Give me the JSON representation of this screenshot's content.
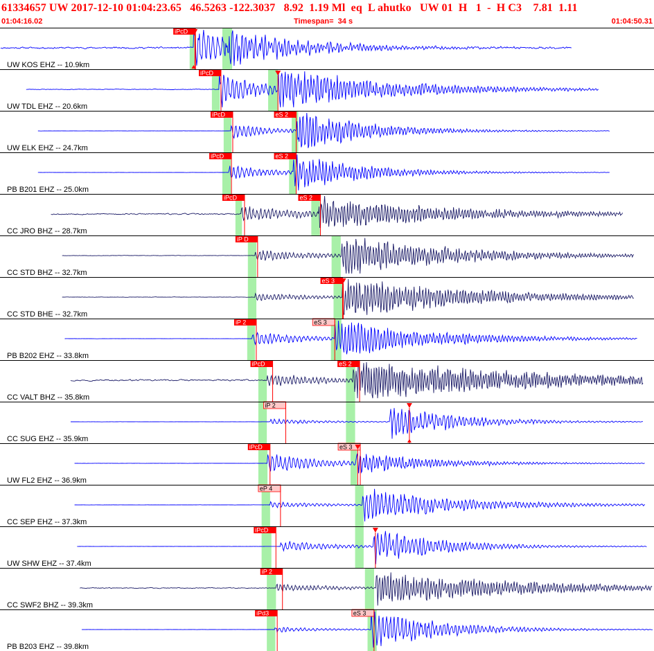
{
  "header": {
    "title": "61334657 UW 2017-12-10 01:04:23.65   46.5263 -122.3037   8.92  1.19 Ml  eq  L ahutko   UW 01  H   1  -  H C3    7.81  1.11",
    "start_time": "01:04:16.02",
    "timespan": "Timespan=  34 s",
    "end_time": "01:04:50.31"
  },
  "colors": {
    "trace_blue": "#0000ff",
    "trace_navy": "#1a1a66",
    "pick_red": "#ff0000",
    "pick_pink": "#ffc8c8",
    "window_green": "#a8f0a8",
    "divider": "#000000"
  },
  "channels": [
    {
      "label": "UW KOS EHZ -- 10.9km",
      "color": "blue",
      "noise": 0.08,
      "seed": 11,
      "start": 0.1,
      "end": 87.4,
      "p_arrival": 29.6,
      "s_arrival": 34.5,
      "p_amp": 1.0,
      "s_amp": 0.8,
      "p_decay": 8,
      "s_decay": 12,
      "p_period": 0.4,
      "s_period": 0.7,
      "green": [
        [
          29.0,
          29.8
        ],
        [
          34.0,
          35.5
        ]
      ],
      "picks": [
        {
          "label": "iPcD",
          "x": 26.5,
          "style": "red"
        }
      ],
      "markers": [
        {
          "x": 29.8,
          "dir": "down"
        }
      ],
      "pdots": [
        {
          "x": 29.6,
          "y": 0.92
        }
      ]
    },
    {
      "label": "UW TDL EHZ -- 20.6km",
      "color": "blue",
      "noise": 0.03,
      "seed": 23,
      "start": 4.0,
      "end": 91.5,
      "p_arrival": 33.5,
      "s_arrival": 42.5,
      "p_amp": 0.9,
      "s_amp": 1.0,
      "p_decay": 6,
      "s_decay": 16,
      "p_period": 0.45,
      "s_period": 0.7,
      "green": [
        [
          32.4,
          33.6
        ],
        [
          41.0,
          42.5
        ]
      ],
      "picks": [
        {
          "label": "iPcD",
          "x": 30.4,
          "style": "red"
        }
      ],
      "markers": [
        {
          "x": 42.5,
          "dir": "down"
        }
      ],
      "pdots": []
    },
    {
      "label": "UW ELK EHZ -- 24.7km",
      "color": "blue",
      "noise": 0.01,
      "seed": 37,
      "start": 5.8,
      "end": 93.2,
      "p_arrival": 35.3,
      "s_arrival": 45.3,
      "p_amp": 0.4,
      "s_amp": 1.0,
      "p_decay": 6,
      "s_decay": 10,
      "p_period": 0.45,
      "s_period": 0.7,
      "green": [
        [
          34.2,
          35.4
        ],
        [
          44.6,
          45.6
        ]
      ],
      "picks": [
        {
          "label": "iPcD",
          "x": 32.2,
          "style": "red"
        },
        {
          "label": "eS 2",
          "x": 41.9,
          "style": "red"
        }
      ],
      "markers": [],
      "pdots": []
    },
    {
      "label": "PB B201 EHZ -- 25.0km",
      "color": "blue",
      "noise": 0.01,
      "seed": 41,
      "start": 5.8,
      "end": 93.2,
      "p_arrival": 35.0,
      "s_arrival": 44.8,
      "p_amp": 0.4,
      "s_amp": 0.9,
      "p_decay": 6,
      "s_decay": 10,
      "p_period": 0.45,
      "s_period": 0.7,
      "green": [
        [
          34.0,
          35.3
        ],
        [
          44.2,
          45.3
        ]
      ],
      "picks": [
        {
          "label": "iPcD",
          "x": 32.0,
          "style": "red"
        },
        {
          "label": "eS 2",
          "x": 41.9,
          "style": "red"
        }
      ],
      "markers": [],
      "pdots": []
    },
    {
      "label": "CC JRO BHZ -- 28.7km",
      "color": "navy",
      "noise": 0.06,
      "seed": 53,
      "start": 7.8,
      "end": 95.3,
      "p_arrival": 36.9,
      "s_arrival": 48.7,
      "p_amp": 0.4,
      "s_amp": 0.8,
      "p_decay": 10,
      "s_decay": 20,
      "p_period": 0.5,
      "s_period": 0.8,
      "green": [
        [
          36.0,
          37.0
        ],
        [
          47.6,
          48.9
        ]
      ],
      "picks": [
        {
          "label": "iPcD",
          "x": 34.0,
          "style": "red"
        },
        {
          "label": "eS 2",
          "x": 45.6,
          "style": "red"
        }
      ],
      "markers": [],
      "pdots": []
    },
    {
      "label": "CC STD BHZ -- 32.7km",
      "color": "navy",
      "noise": 0.02,
      "seed": 67,
      "start": 9.5,
      "end": 97.0,
      "p_arrival": 39.0,
      "s_arrival": 52.2,
      "p_amp": 0.3,
      "s_amp": 1.0,
      "p_decay": 10,
      "s_decay": 16,
      "p_period": 0.5,
      "s_period": 0.8,
      "green": [
        [
          37.9,
          39.2
        ],
        [
          50.7,
          52.1
        ]
      ],
      "picks": [
        {
          "label": "iP D",
          "x": 36.0,
          "style": "red"
        }
      ],
      "markers": [],
      "pdots": []
    },
    {
      "label": "CC STD BHE -- 32.7km",
      "color": "navy",
      "noise": 0.02,
      "seed": 71,
      "start": 9.5,
      "end": 97.0,
      "p_arrival": 39.0,
      "s_arrival": 52.3,
      "p_amp": 0.2,
      "s_amp": 1.0,
      "p_decay": 10,
      "s_decay": 18,
      "p_period": 0.5,
      "s_period": 0.8,
      "green": [
        [
          37.9,
          39.2
        ],
        [
          51.0,
          52.4
        ]
      ],
      "picks": [
        {
          "label": "eS 3",
          "x": 49.0,
          "style": "red"
        }
      ],
      "markers": [
        {
          "x": 52.5,
          "dir": "down"
        }
      ],
      "pdots": []
    },
    {
      "label": "PB B202 EHZ -- 33.8km",
      "color": "blue",
      "noise": 0.01,
      "seed": 83,
      "start": 9.9,
      "end": 97.4,
      "p_arrival": 38.6,
      "s_arrival": 51.2,
      "p_amp": 0.35,
      "s_amp": 1.0,
      "p_decay": 8,
      "s_decay": 14,
      "p_period": 0.45,
      "s_period": 0.7,
      "green": [
        [
          37.8,
          39.0
        ],
        [
          50.6,
          52.2
        ]
      ],
      "picks": [
        {
          "label": "iP 2",
          "x": 35.8,
          "style": "red"
        },
        {
          "label": "eS 3",
          "x": 47.8,
          "style": "pink"
        }
      ],
      "markers": [],
      "pdots": []
    },
    {
      "label": "CC VALT BHZ -- 35.8km",
      "color": "navy",
      "noise": 0.07,
      "seed": 97,
      "start": 10.8,
      "end": 98.3,
      "p_arrival": 40.8,
      "s_arrival": 54.0,
      "p_amp": 0.3,
      "s_amp": 1.0,
      "p_decay": 12,
      "s_decay": 28,
      "p_period": 0.5,
      "s_period": 0.9,
      "green": [
        [
          39.5,
          40.8
        ],
        [
          52.9,
          54.3
        ]
      ],
      "picks": [
        {
          "label": "iPcD",
          "x": 38.3,
          "style": "red"
        },
        {
          "label": "eS 2",
          "x": 51.6,
          "style": "red"
        }
      ],
      "markers": [],
      "pdots": []
    },
    {
      "label": "CC SUG EHZ -- 35.9km",
      "color": "blue",
      "noise": 0.01,
      "seed": 101,
      "start": 10.8,
      "end": 98.3,
      "p_arrival": 41.3,
      "s_arrival": 59.6,
      "p_amp": 0.15,
      "s_amp": 0.8,
      "p_decay": 8,
      "s_decay": 10,
      "p_period": 0.45,
      "s_period": 0.6,
      "green": [
        [
          39.5,
          40.8
        ],
        [
          52.9,
          54.3
        ]
      ],
      "picks": [
        {
          "label": "iP 2",
          "x": 40.3,
          "style": "pink"
        }
      ],
      "markers": [
        {
          "x": 62.6,
          "dir": "down"
        }
      ],
      "pdots": [
        {
          "x": 62.6,
          "y": 0.92
        }
      ]
    },
    {
      "label": "UW FL2 EHZ -- 36.9km",
      "color": "blue",
      "noise": 0.01,
      "seed": 113,
      "start": 11.4,
      "end": 98.6,
      "p_arrival": 40.9,
      "s_arrival": 54.5,
      "p_amp": 0.5,
      "s_amp": 0.5,
      "p_decay": 8,
      "s_decay": 12,
      "p_period": 0.45,
      "s_period": 0.7,
      "green": [
        [
          39.5,
          40.9
        ],
        [
          53.6,
          54.6
        ]
      ],
      "picks": [
        {
          "label": "iPcD",
          "x": 37.9,
          "style": "red"
        },
        {
          "label": "eS 3",
          "x": 51.7,
          "style": "pink"
        }
      ],
      "markers": [
        {
          "x": 54.7,
          "dir": "down"
        }
      ],
      "pdots": []
    },
    {
      "label": "CC SEP EHZ -- 37.3km",
      "color": "blue",
      "noise": 0.01,
      "seed": 127,
      "start": 11.4,
      "end": 98.6,
      "p_arrival": 41.3,
      "s_arrival": 55.4,
      "p_amp": 0.15,
      "s_amp": 0.8,
      "p_decay": 10,
      "s_decay": 14,
      "p_period": 0.45,
      "s_period": 0.6,
      "green": [
        [
          40.0,
          41.3
        ],
        [
          54.3,
          55.6
        ]
      ],
      "picks": [
        {
          "label": "eP 4",
          "x": 39.5,
          "style": "pink"
        }
      ],
      "markers": [],
      "pdots": []
    },
    {
      "label": "UW SHW EHZ -- 37.4km",
      "color": "blue",
      "noise": 0.01,
      "seed": 131,
      "start": 11.8,
      "end": 98.9,
      "p_arrival": 42.9,
      "s_arrival": 57.1,
      "p_amp": 0.3,
      "s_amp": 0.8,
      "p_decay": 8,
      "s_decay": 10,
      "p_period": 0.45,
      "s_period": 0.6,
      "green": [
        [
          40.0,
          41.5
        ],
        [
          54.3,
          55.6
        ]
      ],
      "picks": [
        {
          "label": "iPcD",
          "x": 38.8,
          "style": "red"
        }
      ],
      "markers": [
        {
          "x": 57.4,
          "dir": "down"
        }
      ],
      "pdots": []
    },
    {
      "label": "CC SWF2 BHZ -- 39.3km",
      "color": "navy",
      "noise": 0.04,
      "seed": 149,
      "start": 12.2,
      "end": 99.8,
      "p_arrival": 42.2,
      "s_arrival": 57.5,
      "p_amp": 0.2,
      "s_amp": 0.8,
      "p_decay": 10,
      "s_decay": 22,
      "p_period": 0.5,
      "s_period": 0.8,
      "green": [
        [
          40.8,
          42.2
        ],
        [
          55.8,
          57.2
        ]
      ],
      "picks": [
        {
          "label": "iP 2",
          "x": 39.8,
          "style": "red"
        }
      ],
      "markers": [],
      "pdots": []
    },
    {
      "label": "PB B203 EHZ -- 39.8km",
      "color": "blue",
      "noise": 0.01,
      "seed": 163,
      "start": 12.5,
      "end": 99.8,
      "p_arrival": 42.0,
      "s_arrival": 56.7,
      "p_amp": 0.15,
      "s_amp": 1.0,
      "p_decay": 8,
      "s_decay": 10,
      "p_period": 0.45,
      "s_period": 0.6,
      "green": [
        [
          40.8,
          42.1
        ],
        [
          56.2,
          57.6
        ]
      ],
      "picks": [
        {
          "label": "iPd3",
          "x": 39.0,
          "style": "red"
        },
        {
          "label": "eS 3",
          "x": 53.8,
          "style": "pink"
        }
      ],
      "markers": [],
      "pdots": []
    }
  ]
}
